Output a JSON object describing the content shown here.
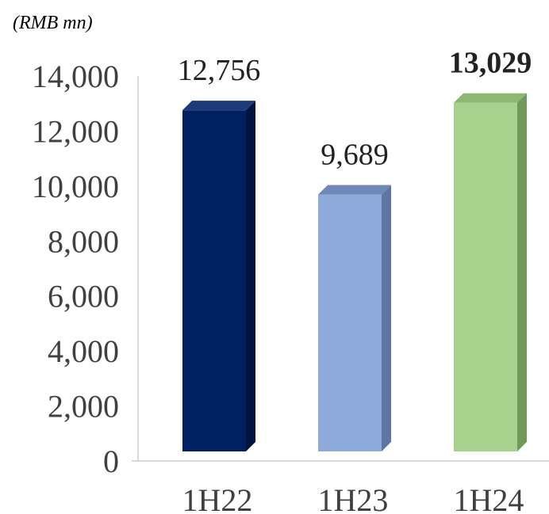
{
  "chart_data": {
    "type": "bar",
    "unit_label": "(RMB mn)",
    "categories": [
      "1H22",
      "1H23",
      "1H24"
    ],
    "values": [
      12756,
      9689,
      13029
    ],
    "data_labels": [
      "12,756",
      "9,689",
      "13,029"
    ],
    "highlight_index": 2,
    "ylim": [
      0,
      14000
    ],
    "yticks": [
      0,
      2000,
      4000,
      6000,
      8000,
      10000,
      12000,
      14000
    ],
    "ytick_labels": [
      "0",
      "2,000",
      "4,000",
      "6,000",
      "8,000",
      "10,000",
      "12,000",
      "14,000"
    ],
    "colors": {
      "front": [
        "#002060",
        "#8eaadb",
        "#a9d18e"
      ],
      "top": [
        "#1f3a7a",
        "#6f88b8",
        "#8bb873"
      ],
      "side": [
        "#001440",
        "#5f76a4",
        "#6f9a5c"
      ],
      "axis": "#d9d9d9"
    },
    "grid": false,
    "legend": "none"
  }
}
